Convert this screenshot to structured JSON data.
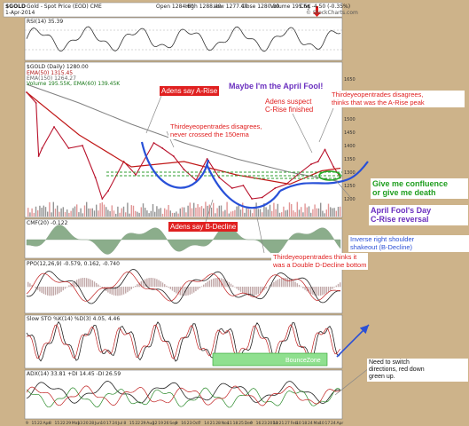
{
  "header": {
    "symbol": "$GOLD",
    "desc": "Gold - Spot Price (EOD)  CME",
    "date": "1-Apr-2014",
    "open": "Open 1284.80",
    "high": "High 1288.40",
    "low": "Low 1277.40",
    "close": "Close 1280.00",
    "volume": "Volume 195.6K",
    "chg": "Chg -4.50 (-0.35%)",
    "logo": "© StockCharts.com"
  },
  "panels": {
    "rsi": "RSI(14) 35.39",
    "price": "$GOLD (Daily) 1280.00",
    "ema50": "EMA(50) 1315.45",
    "ema150": "EMA(150) 1264.27",
    "volume": "Volume 195.55K, EMA(60) 139.45K",
    "cmf": "CMF(20) -0.122",
    "ppo": "PPO(12,26,9) -0.579, 0.162, -0.740",
    "sto": "Slow STO %K(14) %D(3) 4.05, 4.46",
    "adx": "ADX(14) 33.81  +DI 14.45  -DI 26.59"
  },
  "annotations": {
    "april_fool": "Maybe I'm the April Fool!",
    "a_rise": "Adens say A-Rise",
    "c_rise": "Adens suspect\nC-Rise finished",
    "a_rise_peak": "Thirdeyeopentrades disagrees,\nthinks that was the A-Rise peak",
    "ema_cross": "Thirdeyeopentrades disagrees,\nnever crossed the 150ema",
    "confluence": "Give me confluence\nor give me death",
    "c_reversal": "April Fool's Day\nC-Rise reversal",
    "b_decline": "Adens say B-Decline",
    "shakeout": "Inverse right shoulder\nshakeout (B-Decline)",
    "double_d": "Thirdeyeopentrades thinks it\nwas a Double D-Decline bottom",
    "bouncezone": "BounceZone",
    "switch": "Need to switch\ndirections, red down\ngreen up."
  },
  "x_ticks": [
    "9",
    "15",
    "22",
    "Apr",
    "8",
    "15",
    "22",
    "29",
    "May",
    "13",
    "20",
    "28",
    "Jun",
    "10",
    "17",
    "24",
    "Jul",
    "8",
    "15",
    "22",
    "29",
    "Aug",
    "12",
    "19",
    "26",
    "Sep",
    "9",
    "16",
    "23",
    "Oct",
    "7",
    "14",
    "21",
    "28",
    "Nov",
    "11",
    "18",
    "25",
    "Dec",
    "9",
    "16",
    "23",
    "2014",
    "13",
    "21",
    "27",
    "Feb",
    "10",
    "18",
    "24",
    "Mar",
    "10",
    "17",
    "24",
    "Apr"
  ],
  "price_ticks": [
    "1650",
    "1600",
    "1550",
    "1500",
    "1450",
    "1400",
    "1350",
    "1300",
    "1250",
    "1200"
  ],
  "chart_data": {
    "type": "line",
    "title": "$GOLD (Daily) 1280.00",
    "x_range": [
      "2013-04-01",
      "2014-04-01"
    ],
    "ylim": [
      1180,
      1680
    ],
    "series": [
      {
        "name": "$GOLD close",
        "x": [
          "2013-04-01",
          "2013-04-12",
          "2013-04-15",
          "2013-04-19",
          "2013-05-03",
          "2013-05-20",
          "2013-06-05",
          "2013-06-20",
          "2013-06-28",
          "2013-07-05",
          "2013-07-23",
          "2013-08-06",
          "2013-08-27",
          "2013-09-06",
          "2013-09-19",
          "2013-10-01",
          "2013-10-15",
          "2013-10-28",
          "2013-11-11",
          "2013-11-26",
          "2013-12-09",
          "2013-12-19",
          "2013-12-31",
          "2014-01-15",
          "2014-01-28",
          "2014-02-10",
          "2014-02-26",
          "2014-03-06",
          "2014-03-14",
          "2014-03-24",
          "2014-04-01"
        ],
        "values": [
          1600,
          1560,
          1360,
          1390,
          1470,
          1390,
          1400,
          1280,
          1200,
          1230,
          1340,
          1290,
          1410,
          1390,
          1360,
          1310,
          1270,
          1350,
          1280,
          1240,
          1250,
          1200,
          1205,
          1240,
          1255,
          1290,
          1330,
          1340,
          1385,
          1320,
          1280
        ]
      },
      {
        "name": "EMA(50) 1315.45",
        "x": [
          "2013-04-01",
          "2013-06-01",
          "2013-08-01",
          "2013-10-01",
          "2013-12-01",
          "2014-02-01",
          "2014-03-10",
          "2014-04-01"
        ],
        "values": [
          1600,
          1440,
          1320,
          1340,
          1290,
          1255,
          1305,
          1315
        ]
      },
      {
        "name": "EMA(150) 1264.27",
        "x": [
          "2013-04-01",
          "2013-06-01",
          "2013-08-01",
          "2013-10-01",
          "2013-12-01",
          "2014-02-01",
          "2014-04-01"
        ],
        "values": [
          1630,
          1560,
          1480,
          1410,
          1350,
          1300,
          1264
        ]
      }
    ]
  }
}
